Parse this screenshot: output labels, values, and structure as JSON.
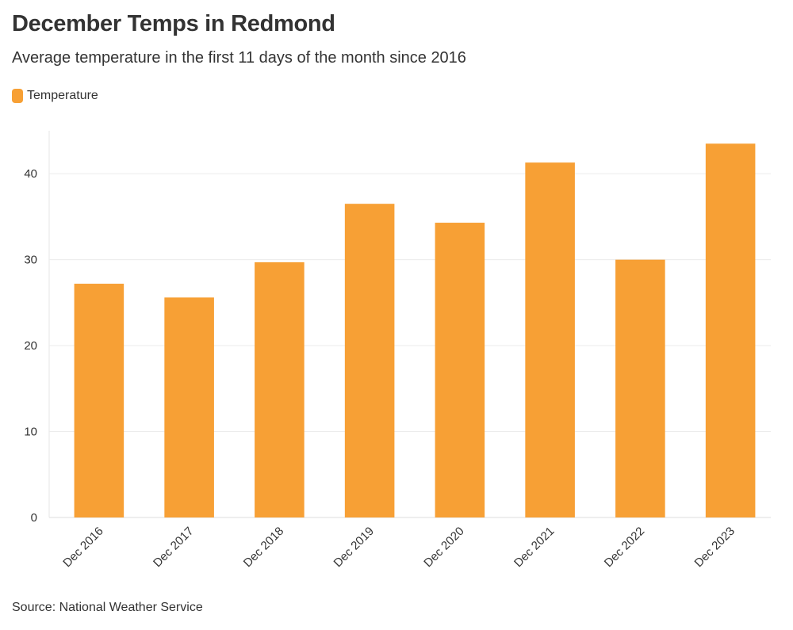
{
  "chart_data": {
    "type": "bar",
    "title": "December Temps in Redmond",
    "subtitle": "Average temperature in the first 11 days of the month since 2016",
    "source": "Source: National Weather Service",
    "categories": [
      "Dec 2016",
      "Dec 2017",
      "Dec 2018",
      "Dec 2019",
      "Dec 2020",
      "Dec 2021",
      "Dec 2022",
      "Dec 2023"
    ],
    "series": [
      {
        "name": "Temperature",
        "color": "#F7A035",
        "values": [
          27.2,
          25.6,
          29.7,
          36.5,
          34.3,
          41.3,
          30.0,
          43.5
        ]
      }
    ],
    "yticks": [
      0,
      10,
      20,
      30,
      40
    ],
    "ylim": [
      0,
      45
    ],
    "grid": true,
    "legend": "top-left",
    "xlabel": "",
    "ylabel": ""
  }
}
